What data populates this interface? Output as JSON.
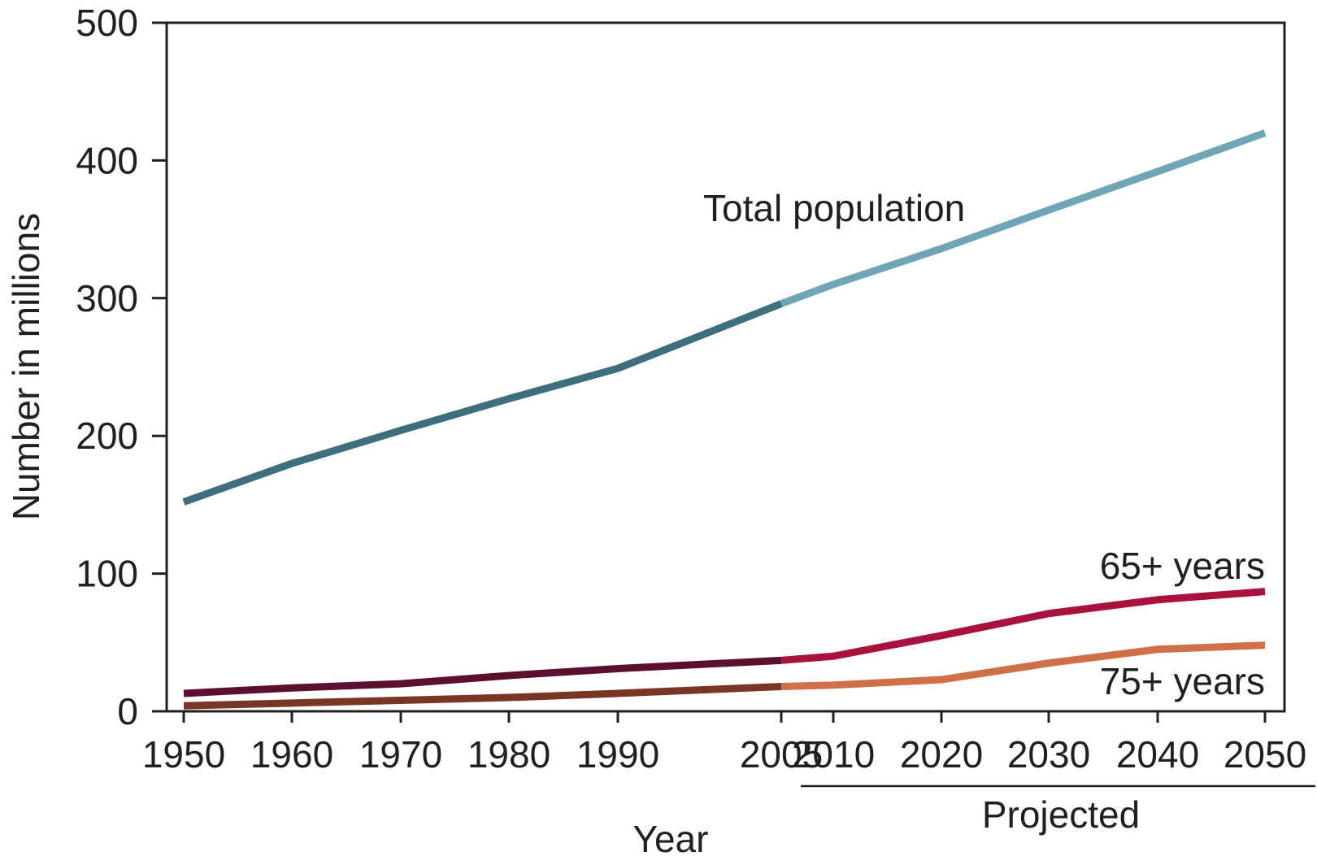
{
  "chart_data": {
    "type": "line",
    "xlabel": "Year",
    "ylabel": "Number in millions",
    "projected_label": "Projected",
    "x": [
      1950,
      1960,
      1970,
      1980,
      1990,
      2005,
      2010,
      2020,
      2030,
      2040,
      2050
    ],
    "x_tick_labels": [
      "1950",
      "1960",
      "1970",
      "1980",
      "1990",
      "2005",
      "2010",
      "2020",
      "2030",
      "2040",
      "2050"
    ],
    "projected_from": 2005,
    "ylim": [
      0,
      500
    ],
    "y_ticks": [
      0,
      100,
      200,
      300,
      400,
      500
    ],
    "grid": false,
    "series": [
      {
        "name": "Total population",
        "values": [
          152,
          180,
          204,
          227,
          249,
          296,
          310,
          336,
          364,
          392,
          420
        ],
        "color_historical": "#3e6f7c",
        "color_projected": "#6fa6b6"
      },
      {
        "name": "65+ years",
        "values": [
          13,
          17,
          20,
          26,
          31,
          37,
          40,
          55,
          71,
          81,
          87
        ],
        "color_historical": "#5c1030",
        "color_projected": "#a8123d"
      },
      {
        "name": "75+ years",
        "values": [
          4,
          6,
          8,
          10,
          13,
          18,
          19,
          23,
          35,
          45,
          48
        ],
        "color_historical": "#7a3624",
        "color_projected": "#cf7048"
      }
    ]
  }
}
